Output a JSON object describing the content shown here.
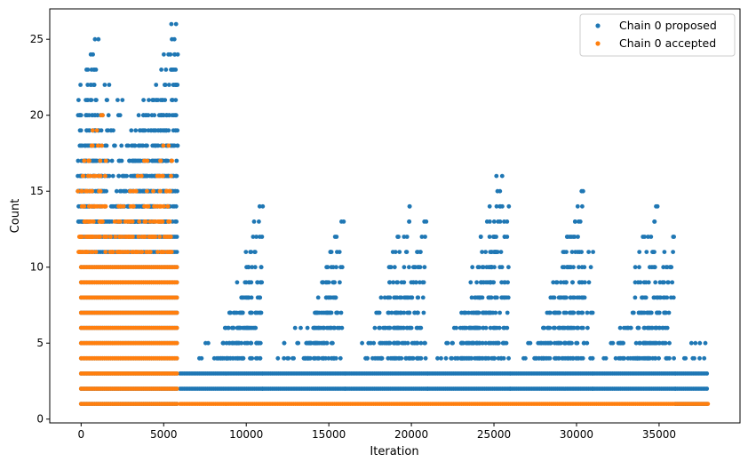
{
  "chart_data": {
    "type": "scatter",
    "xlabel": "Iteration",
    "ylabel": "Count",
    "xlim": [
      -1900,
      39900
    ],
    "ylim": [
      -0.25,
      27.0
    ],
    "xticks": [
      0,
      5000,
      10000,
      15000,
      20000,
      25000,
      30000,
      35000
    ],
    "yticks": [
      0,
      5,
      10,
      15,
      20,
      25
    ],
    "grid": false,
    "legend_position": "top-right",
    "series": [
      {
        "name": "Chain 0 proposed",
        "color": "#1f77b4",
        "phases": [
          {
            "x_range": [
              0,
              5900
            ],
            "min": 1,
            "dense_max": 12,
            "peaks": [
              [
                900,
                23
              ],
              [
                1050,
                25
              ],
              [
                1300,
                20
              ],
              [
                1700,
                22
              ],
              [
                2500,
                21
              ],
              [
                3300,
                19
              ],
              [
                3900,
                20
              ],
              [
                4100,
                21
              ],
              [
                5200,
                20
              ],
              [
                5600,
                22
              ],
              [
                5750,
                26
              ],
              [
                5850,
                24
              ]
            ]
          },
          {
            "x_range": [
              6000,
              11000
            ],
            "min": 2,
            "dense_max": 3,
            "peaks": [
              [
                7700,
                5
              ],
              [
                8900,
                6
              ],
              [
                9800,
                8
              ],
              [
                10300,
                9
              ],
              [
                10900,
                10
              ],
              [
                11000,
                14
              ]
            ]
          },
          {
            "x_range": [
              11000,
              16000
            ],
            "min": 2,
            "dense_max": 3,
            "peaks": [
              [
                12300,
                5
              ],
              [
                13300,
                6
              ],
              [
                14300,
                7
              ],
              [
                15000,
                9
              ],
              [
                15500,
                11
              ],
              [
                15900,
                13
              ]
            ]
          },
          {
            "x_range": [
              16000,
              21000
            ],
            "min": 2,
            "dense_max": 3,
            "peaks": [
              [
                17400,
                5
              ],
              [
                18300,
                6
              ],
              [
                19300,
                8
              ],
              [
                19900,
                14
              ],
              [
                20400,
                10
              ],
              [
                20900,
                13
              ]
            ]
          },
          {
            "x_range": [
              21000,
              26000
            ],
            "min": 2,
            "dense_max": 3,
            "peaks": [
              [
                22200,
                5
              ],
              [
                23200,
                7
              ],
              [
                24200,
                8
              ],
              [
                25000,
                11
              ],
              [
                25500,
                16
              ],
              [
                25900,
                14
              ]
            ]
          },
          {
            "x_range": [
              26000,
              31000
            ],
            "min": 2,
            "dense_max": 3,
            "peaks": [
              [
                27200,
                5
              ],
              [
                28300,
                6
              ],
              [
                29300,
                8
              ],
              [
                29800,
                12
              ],
              [
                30400,
                15
              ],
              [
                31000,
                11
              ]
            ]
          },
          {
            "x_range": [
              31000,
              36000
            ],
            "min": 2,
            "dense_max": 3,
            "peaks": [
              [
                32200,
                5
              ],
              [
                33300,
                6
              ],
              [
                34300,
                7
              ],
              [
                34900,
                14
              ],
              [
                35500,
                10
              ],
              [
                35900,
                12
              ]
            ]
          },
          {
            "x_range": [
              36000,
              38000
            ],
            "min": 1,
            "dense_max": 3,
            "peaks": [
              [
                36600,
                4
              ],
              [
                37200,
                5
              ],
              [
                37800,
                5
              ]
            ]
          }
        ]
      },
      {
        "name": "Chain 0 accepted",
        "color": "#ff7f0e",
        "phases": [
          {
            "x_range": [
              0,
              5900
            ],
            "min": 1,
            "dense_max": 10,
            "peaks": [
              [
                100,
                16
              ],
              [
                800,
                14
              ],
              [
                1300,
                20
              ],
              [
                1500,
                17
              ],
              [
                2400,
                14
              ],
              [
                3000,
                15
              ],
              [
                4000,
                17
              ],
              [
                5300,
                18
              ],
              [
                5500,
                17
              ]
            ]
          },
          {
            "x_range": [
              6000,
              38000
            ],
            "min": 1,
            "dense_max": 1,
            "peaks": []
          }
        ]
      }
    ]
  }
}
